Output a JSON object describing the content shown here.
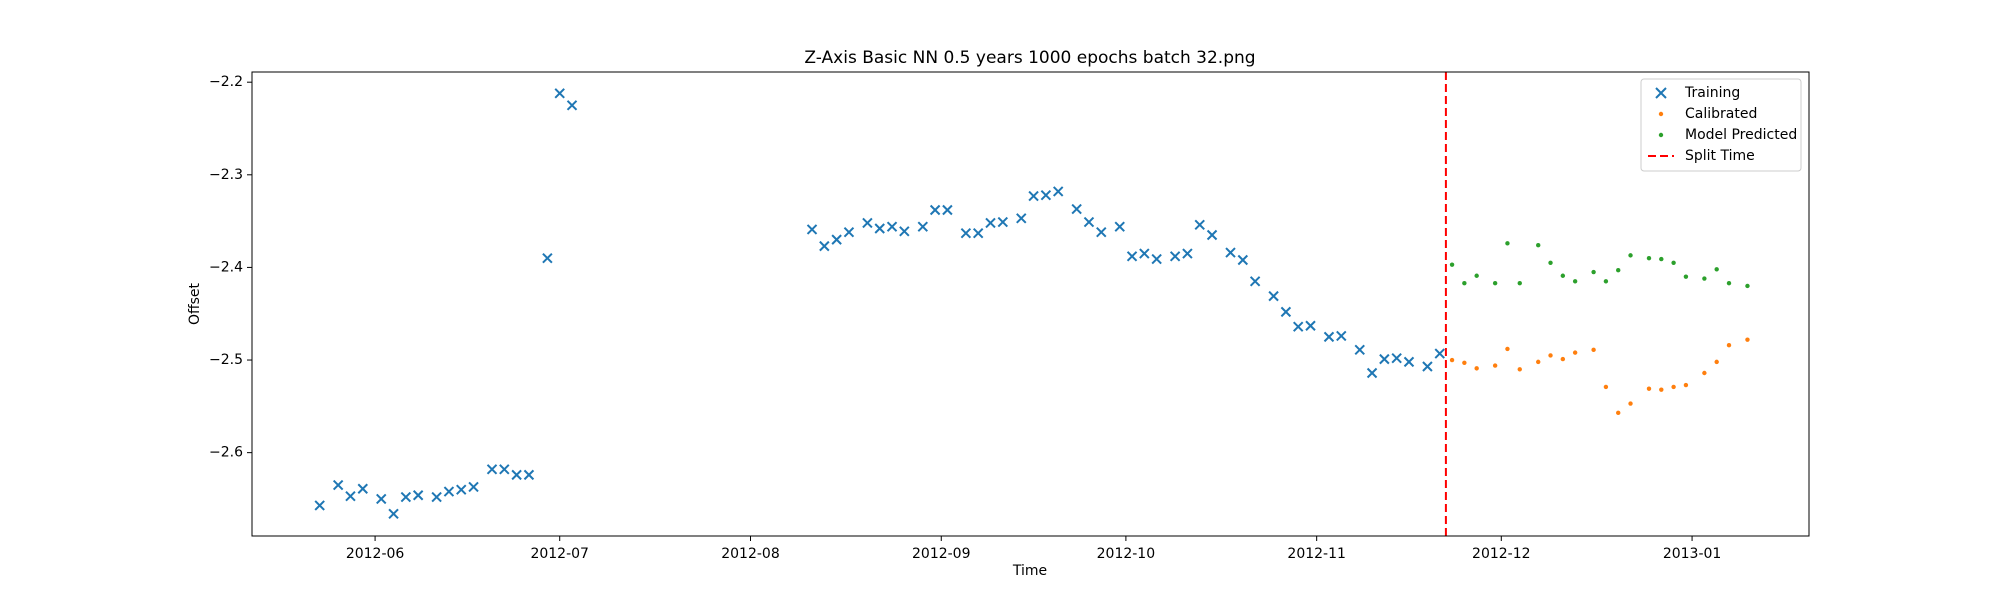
{
  "chart_data": {
    "type": "scatter",
    "title": "Z-Axis Basic NN 0.5 years 1000 epochs batch 32.png",
    "x_label": "Time",
    "y_label": "Offset",
    "xlim": [
      "2012-05-12",
      "2013-01-20"
    ],
    "xticks": [
      "2012-06",
      "2012-07",
      "2012-08",
      "2012-09",
      "2012-10",
      "2012-11",
      "2012-12",
      "2013-01"
    ],
    "ylim": [
      -2.69,
      -2.189
    ],
    "yticks": [
      {
        "value": -2.6,
        "label": "−2.6"
      },
      {
        "value": -2.5,
        "label": "−2.5"
      },
      {
        "value": -2.4,
        "label": "−2.4"
      },
      {
        "value": -2.3,
        "label": "−2.3"
      },
      {
        "value": -2.2,
        "label": "−2.2"
      }
    ],
    "legend": "upper right",
    "series": [
      {
        "name": "Training",
        "color": "#1f77b4",
        "marker": "x",
        "x": [
          "2012-05-23",
          "2012-05-26",
          "2012-05-28",
          "2012-05-30",
          "2012-06-02",
          "2012-06-04",
          "2012-06-06",
          "2012-06-08",
          "2012-06-11",
          "2012-06-13",
          "2012-06-15",
          "2012-06-17",
          "2012-06-20",
          "2012-06-22",
          "2012-06-24",
          "2012-06-26",
          "2012-06-29",
          "2012-07-01",
          "2012-07-03",
          "2012-08-11",
          "2012-08-13",
          "2012-08-15",
          "2012-08-17",
          "2012-08-20",
          "2012-08-22",
          "2012-08-24",
          "2012-08-26",
          "2012-08-29",
          "2012-08-31",
          "2012-09-02",
          "2012-09-05",
          "2012-09-07",
          "2012-09-09",
          "2012-09-11",
          "2012-09-14",
          "2012-09-16",
          "2012-09-18",
          "2012-09-20",
          "2012-09-23",
          "2012-09-25",
          "2012-09-27",
          "2012-09-30",
          "2012-10-02",
          "2012-10-04",
          "2012-10-06",
          "2012-10-09",
          "2012-10-11",
          "2012-10-13",
          "2012-10-15",
          "2012-10-18",
          "2012-10-20",
          "2012-10-22",
          "2012-10-25",
          "2012-10-27",
          "2012-10-29",
          "2012-10-31",
          "2012-11-03",
          "2012-11-05",
          "2012-11-08",
          "2012-11-10",
          "2012-11-12",
          "2012-11-14",
          "2012-11-16",
          "2012-11-19",
          "2012-11-21"
        ],
        "values": [
          -2.657,
          -2.635,
          -2.647,
          -2.639,
          -2.65,
          -2.666,
          -2.648,
          -2.646,
          -2.648,
          -2.642,
          -2.64,
          -2.637,
          -2.618,
          -2.618,
          -2.624,
          -2.624,
          -2.39,
          -2.212,
          -2.225,
          -2.359,
          -2.377,
          -2.37,
          -2.362,
          -2.352,
          -2.358,
          -2.356,
          -2.361,
          -2.356,
          -2.338,
          -2.338,
          -2.363,
          -2.363,
          -2.352,
          -2.351,
          -2.347,
          -2.323,
          -2.322,
          -2.318,
          -2.337,
          -2.351,
          -2.362,
          -2.356,
          -2.388,
          -2.385,
          -2.391,
          -2.388,
          -2.385,
          -2.354,
          -2.365,
          -2.384,
          -2.392,
          -2.415,
          -2.431,
          -2.448,
          -2.464,
          -2.463,
          -2.475,
          -2.474,
          -2.489,
          -2.514,
          -2.499,
          -2.498,
          -2.502,
          -2.507,
          -2.493
        ]
      },
      {
        "name": "Calibrated",
        "color": "#ff7f0e",
        "marker": "o",
        "x": [
          "2012-11-23",
          "2012-11-25",
          "2012-11-27",
          "2012-11-30",
          "2012-12-02",
          "2012-12-04",
          "2012-12-07",
          "2012-12-09",
          "2012-12-11",
          "2012-12-13",
          "2012-12-16",
          "2012-12-18",
          "2012-12-20",
          "2012-12-22",
          "2012-12-25",
          "2012-12-27",
          "2012-12-29",
          "2012-12-31",
          "2013-01-03",
          "2013-01-05",
          "2013-01-07",
          "2013-01-10"
        ],
        "values": [
          -2.5,
          -2.503,
          -2.509,
          -2.506,
          -2.488,
          -2.51,
          -2.502,
          -2.495,
          -2.499,
          -2.492,
          -2.489,
          -2.529,
          -2.557,
          -2.547,
          -2.531,
          -2.532,
          -2.529,
          -2.527,
          -2.514,
          -2.502,
          -2.484,
          -2.478
        ]
      },
      {
        "name": "Model Predicted",
        "color": "#2ca02c",
        "marker": "o",
        "x": [
          "2012-11-23",
          "2012-11-25",
          "2012-11-27",
          "2012-11-30",
          "2012-12-02",
          "2012-12-04",
          "2012-12-07",
          "2012-12-09",
          "2012-12-11",
          "2012-12-13",
          "2012-12-16",
          "2012-12-18",
          "2012-12-20",
          "2012-12-22",
          "2012-12-25",
          "2012-12-27",
          "2012-12-29",
          "2012-12-31",
          "2013-01-03",
          "2013-01-05",
          "2013-01-07",
          "2013-01-10"
        ],
        "values": [
          -2.397,
          -2.417,
          -2.409,
          -2.417,
          -2.374,
          -2.417,
          -2.376,
          -2.395,
          -2.409,
          -2.415,
          -2.405,
          -2.415,
          -2.403,
          -2.387,
          -2.39,
          -2.391,
          -2.395,
          -2.41,
          -2.412,
          -2.402,
          -2.417,
          -2.42
        ]
      }
    ],
    "split": {
      "name": "Split Time",
      "x": "2012-11-22",
      "color": "#ff0000",
      "style": "dashed"
    }
  }
}
